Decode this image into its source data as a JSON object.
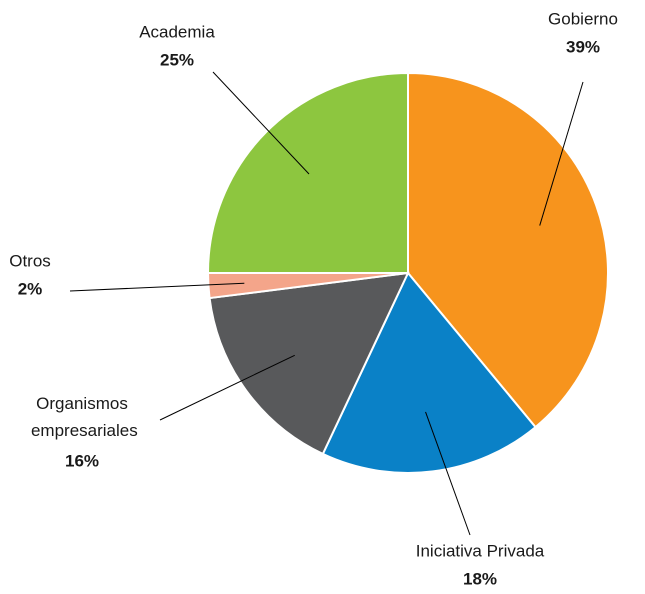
{
  "chart_data": {
    "type": "pie",
    "categories": [
      "Gobierno",
      "Iniciativa Privada",
      "Organismos empresariales",
      "Otros",
      "Academia"
    ],
    "values": [
      39,
      18,
      16,
      2,
      25
    ],
    "value_labels": [
      "39%",
      "18%",
      "16%",
      "2%",
      "25%"
    ],
    "colors": [
      "#f7941d",
      "#0a81c7",
      "#58595b",
      "#f4a58a",
      "#8dc63f"
    ]
  }
}
